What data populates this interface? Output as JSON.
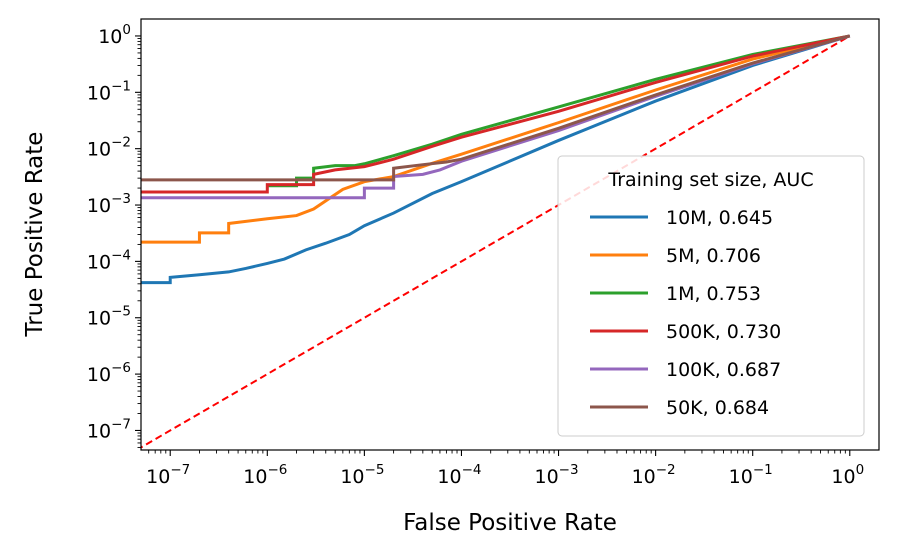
{
  "chart_data": {
    "type": "line",
    "xlabel": "False Positive Rate",
    "ylabel": "True Positive Rate",
    "xscale": "log",
    "yscale": "log",
    "xlim": [
      5e-08,
      2
    ],
    "ylim": [
      4.5e-08,
      2
    ],
    "x_ticks": [
      {
        "base": "10",
        "exp": "−7"
      },
      {
        "base": "10",
        "exp": "−6"
      },
      {
        "base": "10",
        "exp": "−5"
      },
      {
        "base": "10",
        "exp": "−4"
      },
      {
        "base": "10",
        "exp": "−3"
      },
      {
        "base": "10",
        "exp": "−2"
      },
      {
        "base": "10",
        "exp": "−1"
      },
      {
        "base": "10",
        "exp": "0"
      }
    ],
    "y_ticks": [
      {
        "base": "10",
        "exp": "−7"
      },
      {
        "base": "10",
        "exp": "−6"
      },
      {
        "base": "10",
        "exp": "−5"
      },
      {
        "base": "10",
        "exp": "−4"
      },
      {
        "base": "10",
        "exp": "−3"
      },
      {
        "base": "10",
        "exp": "−2"
      },
      {
        "base": "10",
        "exp": "−1"
      },
      {
        "base": "10",
        "exp": "0"
      }
    ],
    "grid": false,
    "legend": {
      "title": "Training set size, AUC",
      "placement": "lower-right"
    },
    "reference_line": {
      "style": "dashed",
      "color": "#ff0000",
      "from": [
        4.5e-08,
        4.5e-08
      ],
      "to": [
        1,
        1
      ]
    },
    "series": [
      {
        "name": "10M, 0.645",
        "color": "#1f77b4",
        "points": [
          [
            5e-08,
            4.2e-05
          ],
          [
            1e-07,
            4.2e-05
          ],
          [
            1e-07,
            5.2e-05
          ],
          [
            2e-07,
            5.8e-05
          ],
          [
            4e-07,
            6.5e-05
          ],
          [
            6e-07,
            7.5e-05
          ],
          [
            1e-06,
            9.2e-05
          ],
          [
            1.5e-06,
            0.00011
          ],
          [
            2.5e-06,
            0.00016
          ],
          [
            4e-06,
            0.00021
          ],
          [
            7e-06,
            0.0003
          ],
          [
            1e-05,
            0.00043
          ],
          [
            2e-05,
            0.00072
          ],
          [
            5e-05,
            0.0016
          ],
          [
            0.0001,
            0.0026
          ],
          [
            0.001,
            0.014
          ],
          [
            0.01,
            0.07
          ],
          [
            0.1,
            0.3
          ],
          [
            1,
            1
          ]
        ]
      },
      {
        "name": "5M, 0.706",
        "color": "#ff7f0e",
        "points": [
          [
            5e-08,
            0.00022
          ],
          [
            2e-07,
            0.00022
          ],
          [
            2e-07,
            0.00032
          ],
          [
            4e-07,
            0.00032
          ],
          [
            4e-07,
            0.00047
          ],
          [
            1e-06,
            0.00057
          ],
          [
            2e-06,
            0.00065
          ],
          [
            3e-06,
            0.00085
          ],
          [
            6e-06,
            0.0019
          ],
          [
            1e-05,
            0.0026
          ],
          [
            2e-05,
            0.0032
          ],
          [
            5e-05,
            0.0055
          ],
          [
            0.0001,
            0.008
          ],
          [
            0.001,
            0.029
          ],
          [
            0.01,
            0.11
          ],
          [
            0.1,
            0.39
          ],
          [
            1,
            1
          ]
        ]
      },
      {
        "name": "1M, 0.753",
        "color": "#2ca02c",
        "points": [
          [
            1e-06,
            0.0022
          ],
          [
            2e-06,
            0.0022
          ],
          [
            2e-06,
            0.003
          ],
          [
            3e-06,
            0.003
          ],
          [
            3e-06,
            0.0045
          ],
          [
            5e-06,
            0.005
          ],
          [
            8e-06,
            0.005
          ],
          [
            1e-05,
            0.0054
          ],
          [
            2e-05,
            0.0075
          ],
          [
            5e-05,
            0.012
          ],
          [
            0.0001,
            0.018
          ],
          [
            0.001,
            0.055
          ],
          [
            0.01,
            0.17
          ],
          [
            0.1,
            0.47
          ],
          [
            1,
            1
          ]
        ]
      },
      {
        "name": "500K, 0.730",
        "color": "#d62728",
        "points": [
          [
            5e-08,
            0.0017
          ],
          [
            1e-06,
            0.0017
          ],
          [
            1e-06,
            0.0023
          ],
          [
            3e-06,
            0.0023
          ],
          [
            3e-06,
            0.0035
          ],
          [
            5e-06,
            0.0042
          ],
          [
            1e-05,
            0.0048
          ],
          [
            2e-05,
            0.0065
          ],
          [
            5e-05,
            0.011
          ],
          [
            0.0001,
            0.016
          ],
          [
            0.001,
            0.046
          ],
          [
            0.01,
            0.15
          ],
          [
            0.1,
            0.44
          ],
          [
            1,
            1
          ]
        ]
      },
      {
        "name": "100K, 0.687",
        "color": "#9467bd",
        "points": [
          [
            5e-08,
            0.00135
          ],
          [
            1e-05,
            0.00135
          ],
          [
            1e-05,
            0.002
          ],
          [
            2e-05,
            0.002
          ],
          [
            2e-05,
            0.0032
          ],
          [
            4e-05,
            0.0035
          ],
          [
            6e-05,
            0.0042
          ],
          [
            0.0001,
            0.006
          ],
          [
            0.001,
            0.021
          ],
          [
            0.01,
            0.085
          ],
          [
            0.1,
            0.32
          ],
          [
            1,
            1
          ]
        ]
      },
      {
        "name": "50K, 0.684",
        "color": "#8c564b",
        "points": [
          [
            5e-08,
            0.0028
          ],
          [
            2e-05,
            0.0028
          ],
          [
            2e-05,
            0.0045
          ],
          [
            4e-05,
            0.0052
          ],
          [
            7e-05,
            0.0058
          ],
          [
            0.0001,
            0.0065
          ],
          [
            0.001,
            0.023
          ],
          [
            0.01,
            0.09
          ],
          [
            0.1,
            0.33
          ],
          [
            1,
            1
          ]
        ]
      }
    ]
  }
}
